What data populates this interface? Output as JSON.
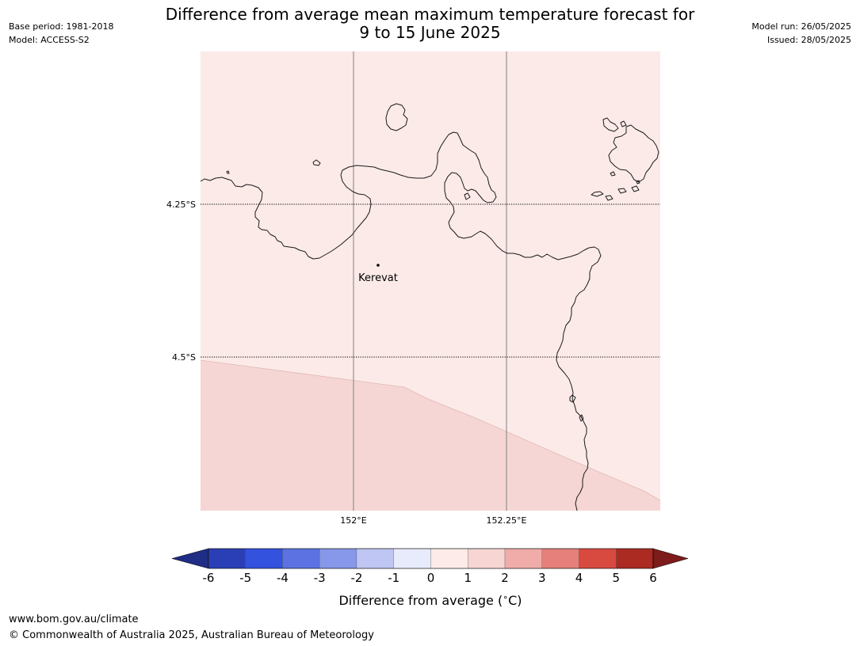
{
  "header": {
    "title_line1": "Difference from average mean maximum temperature forecast for",
    "title_line2": "9 to 15 June 2025",
    "base_period": "Base period: 1981-2018",
    "model": "Model: ACCESS-S2",
    "model_run": "Model run: 26/05/2025",
    "issued": "Issued: 28/05/2025"
  },
  "map": {
    "lat_labels": [
      "4.25°S",
      "4.5°S"
    ],
    "lon_labels": [
      "152°E",
      "152.25°E"
    ],
    "place_label": "Kerevat",
    "fill_colors": {
      "anomaly_0_to_1": "#fbeae8",
      "anomaly_1_to_2": "#f5d6d4",
      "coastline": "#1a1a1a",
      "meridian": "#808080"
    }
  },
  "legend": {
    "tick_labels": [
      "-6",
      "-5",
      "-4",
      "-3",
      "-2",
      "-1",
      "0",
      "1",
      "2",
      "3",
      "4",
      "5",
      "6"
    ],
    "label": "Difference from average ($^\\circ$C)",
    "colors": [
      "#1f2d85",
      "#2a3fb6",
      "#3352de",
      "#5c72e2",
      "#8797ea",
      "#bfc6f3",
      "#e8ebfb",
      "#fcebe9",
      "#f6d5d3",
      "#efaca8",
      "#e5807b",
      "#d84a40",
      "#ab2a22",
      "#7d1c1a"
    ]
  },
  "footer": {
    "url": "www.bom.gov.au/climate",
    "copyright": "© Commonwealth of Australia 2025, Australian Bureau of Meteorology"
  }
}
